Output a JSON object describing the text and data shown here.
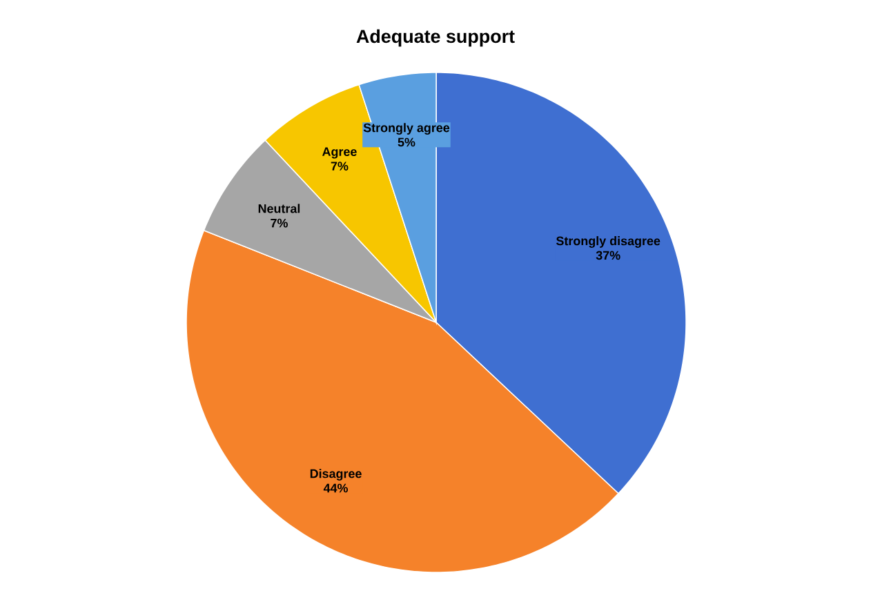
{
  "chart_data": {
    "type": "pie",
    "title": "Adequate support",
    "categories": [
      "Strongly disagree",
      "Disagree",
      "Neutral",
      "Agree",
      "Strongly agree"
    ],
    "values": [
      37,
      44,
      7,
      7,
      5
    ],
    "value_labels": [
      "37%",
      "44%",
      "7%",
      "7%",
      "5%"
    ],
    "colors": [
      "#3f6fd1",
      "#f5822a",
      "#a6a6a6",
      "#f7c600",
      "#5a9fe0"
    ]
  }
}
